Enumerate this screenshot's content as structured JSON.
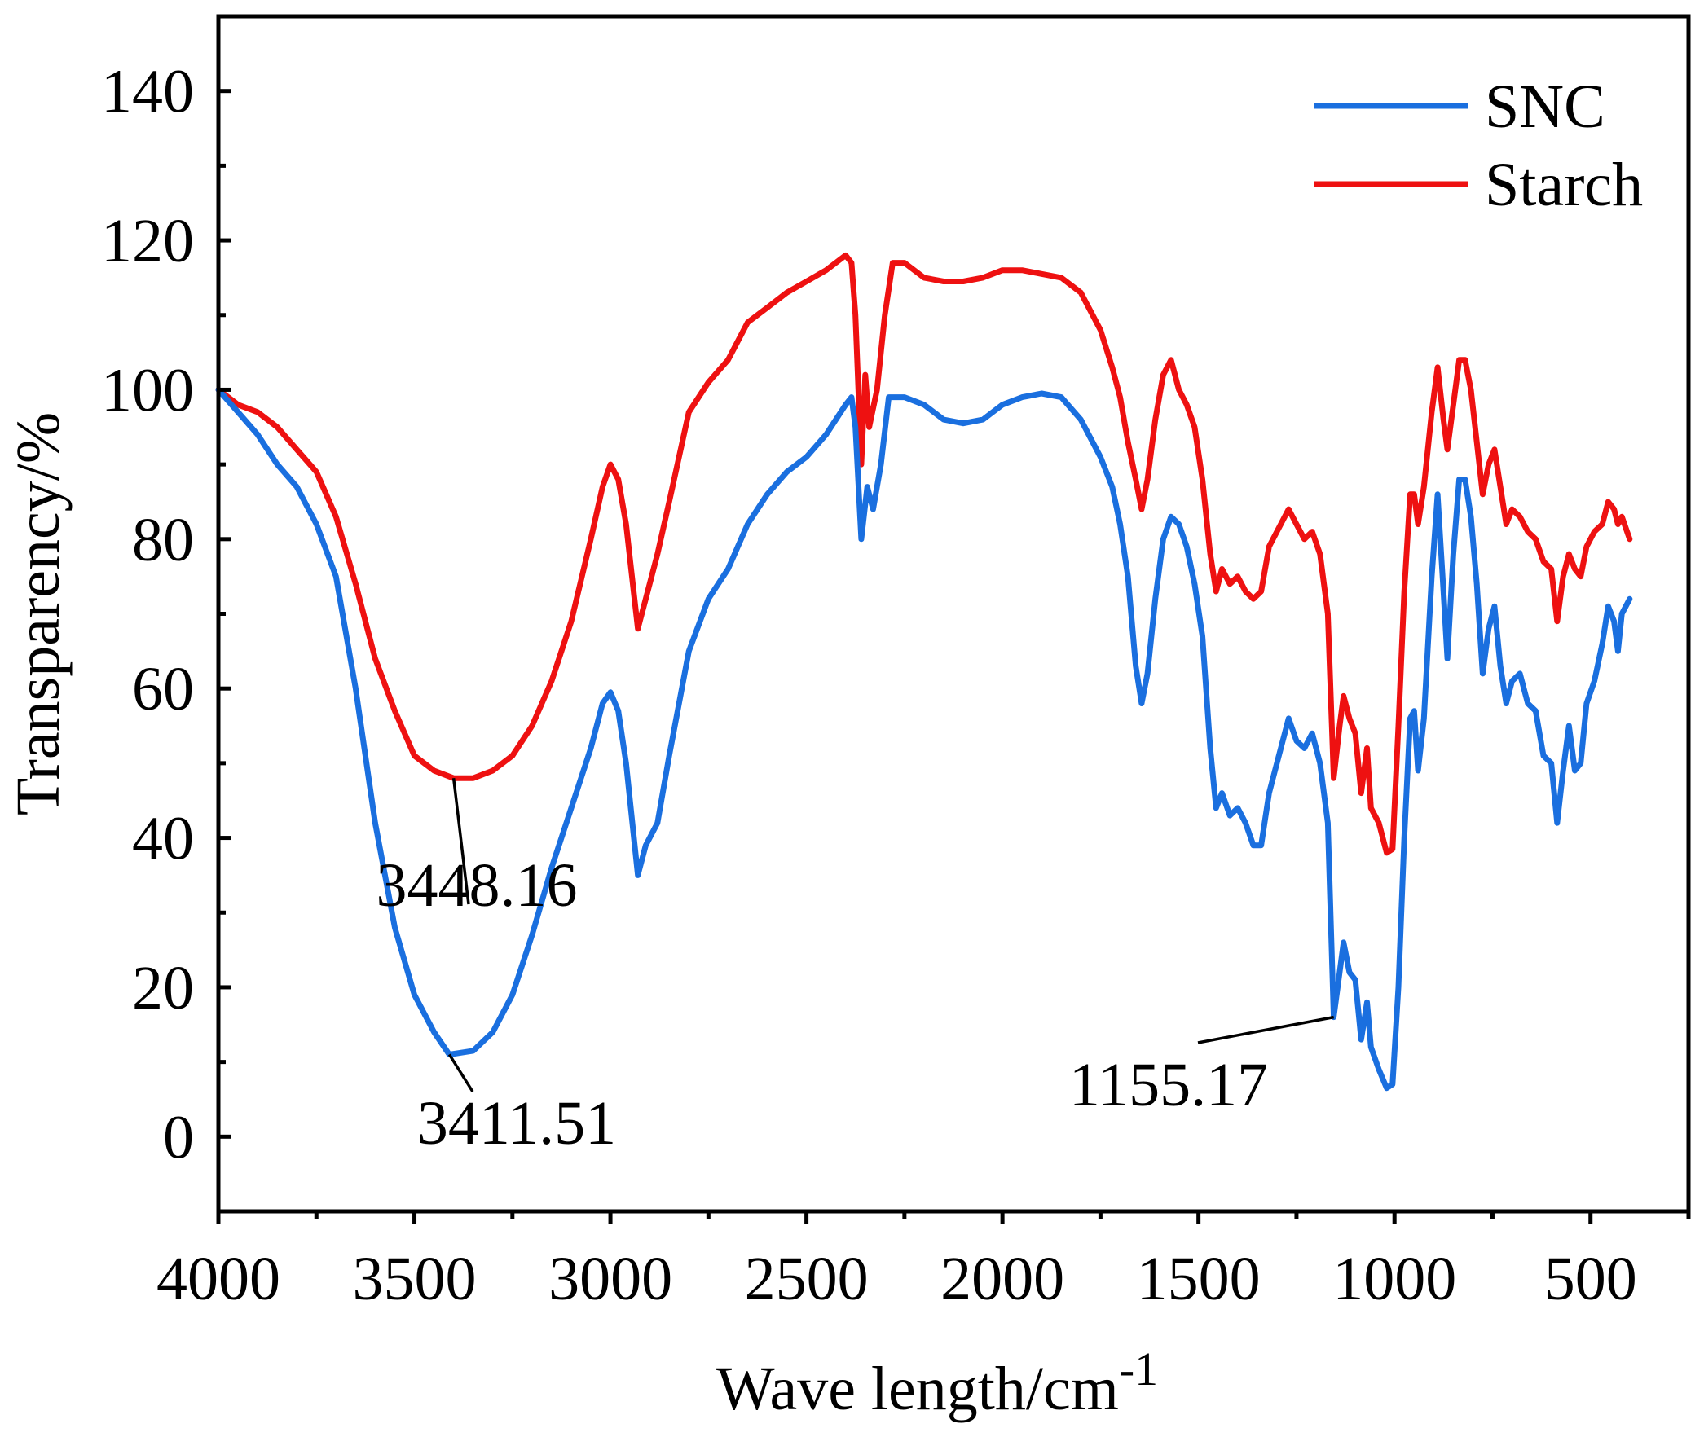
{
  "chart_data": {
    "type": "line",
    "title": "",
    "xlabel": "Wave length/cm",
    "xlabel_sup": "-1",
    "ylabel": "Transparency/%",
    "xlim": [
      4000,
      250
    ],
    "ylim": [
      -10,
      150
    ],
    "x_reversed": true,
    "grid": false,
    "legend_position": "top-right",
    "x_ticks": [
      4000,
      3500,
      3000,
      2500,
      2000,
      1500,
      1000,
      500
    ],
    "y_ticks": [
      0,
      20,
      40,
      60,
      80,
      100,
      120,
      140
    ],
    "series": [
      {
        "name": "SNC",
        "color": "#1a6fdf",
        "points": [
          [
            4000,
            100
          ],
          [
            3950,
            97
          ],
          [
            3900,
            94
          ],
          [
            3850,
            90
          ],
          [
            3800,
            87
          ],
          [
            3750,
            82
          ],
          [
            3700,
            75
          ],
          [
            3650,
            60
          ],
          [
            3600,
            42
          ],
          [
            3550,
            28
          ],
          [
            3500,
            19
          ],
          [
            3450,
            14
          ],
          [
            3411,
            11
          ],
          [
            3350,
            11.5
          ],
          [
            3300,
            14
          ],
          [
            3250,
            19
          ],
          [
            3200,
            27
          ],
          [
            3150,
            36
          ],
          [
            3100,
            44
          ],
          [
            3050,
            52
          ],
          [
            3020,
            58
          ],
          [
            3000,
            59.5
          ],
          [
            2980,
            57
          ],
          [
            2960,
            50
          ],
          [
            2930,
            35
          ],
          [
            2910,
            39
          ],
          [
            2880,
            42
          ],
          [
            2850,
            51
          ],
          [
            2800,
            65
          ],
          [
            2750,
            72
          ],
          [
            2700,
            76
          ],
          [
            2650,
            82
          ],
          [
            2600,
            86
          ],
          [
            2550,
            89
          ],
          [
            2500,
            91
          ],
          [
            2450,
            94
          ],
          [
            2400,
            98
          ],
          [
            2385,
            99
          ],
          [
            2375,
            95
          ],
          [
            2360,
            80
          ],
          [
            2345,
            87
          ],
          [
            2330,
            84
          ],
          [
            2310,
            90
          ],
          [
            2290,
            99
          ],
          [
            2250,
            99
          ],
          [
            2200,
            98
          ],
          [
            2150,
            96
          ],
          [
            2100,
            95.5
          ],
          [
            2050,
            96
          ],
          [
            2000,
            98
          ],
          [
            1950,
            99
          ],
          [
            1900,
            99.5
          ],
          [
            1850,
            99
          ],
          [
            1800,
            96
          ],
          [
            1750,
            91
          ],
          [
            1720,
            87
          ],
          [
            1700,
            82
          ],
          [
            1680,
            75
          ],
          [
            1660,
            63
          ],
          [
            1645,
            58
          ],
          [
            1630,
            62
          ],
          [
            1610,
            72
          ],
          [
            1590,
            80
          ],
          [
            1570,
            83
          ],
          [
            1550,
            82
          ],
          [
            1530,
            79
          ],
          [
            1510,
            74
          ],
          [
            1490,
            67
          ],
          [
            1470,
            52
          ],
          [
            1455,
            44
          ],
          [
            1440,
            46
          ],
          [
            1420,
            43
          ],
          [
            1400,
            44
          ],
          [
            1380,
            42
          ],
          [
            1360,
            39
          ],
          [
            1340,
            39
          ],
          [
            1320,
            46
          ],
          [
            1300,
            50
          ],
          [
            1280,
            54
          ],
          [
            1270,
            56
          ],
          [
            1250,
            53
          ],
          [
            1230,
            52
          ],
          [
            1210,
            54
          ],
          [
            1190,
            50
          ],
          [
            1170,
            42
          ],
          [
            1155,
            16
          ],
          [
            1140,
            22
          ],
          [
            1130,
            26
          ],
          [
            1115,
            22
          ],
          [
            1100,
            21
          ],
          [
            1085,
            13
          ],
          [
            1070,
            18
          ],
          [
            1060,
            12
          ],
          [
            1040,
            9
          ],
          [
            1020,
            6.5
          ],
          [
            1005,
            7
          ],
          [
            990,
            20
          ],
          [
            975,
            40
          ],
          [
            960,
            56
          ],
          [
            950,
            57
          ],
          [
            940,
            49
          ],
          [
            925,
            56
          ],
          [
            905,
            75
          ],
          [
            890,
            86
          ],
          [
            875,
            73
          ],
          [
            865,
            64
          ],
          [
            850,
            78
          ],
          [
            835,
            88
          ],
          [
            820,
            88
          ],
          [
            805,
            83
          ],
          [
            790,
            74
          ],
          [
            775,
            62
          ],
          [
            760,
            68
          ],
          [
            745,
            71
          ],
          [
            730,
            63
          ],
          [
            715,
            58
          ],
          [
            700,
            61
          ],
          [
            680,
            62
          ],
          [
            660,
            58
          ],
          [
            640,
            57
          ],
          [
            620,
            51
          ],
          [
            600,
            50
          ],
          [
            585,
            42
          ],
          [
            570,
            49
          ],
          [
            555,
            55
          ],
          [
            540,
            49
          ],
          [
            525,
            50
          ],
          [
            510,
            58
          ],
          [
            490,
            61
          ],
          [
            470,
            66
          ],
          [
            455,
            71
          ],
          [
            440,
            69
          ],
          [
            430,
            65
          ],
          [
            420,
            70
          ],
          [
            400,
            72
          ]
        ]
      },
      {
        "name": "Starch",
        "color": "#ee1111",
        "points": [
          [
            4000,
            100
          ],
          [
            3950,
            98
          ],
          [
            3900,
            97
          ],
          [
            3850,
            95
          ],
          [
            3800,
            92
          ],
          [
            3750,
            89
          ],
          [
            3700,
            83
          ],
          [
            3650,
            74
          ],
          [
            3600,
            64
          ],
          [
            3550,
            57
          ],
          [
            3500,
            51
          ],
          [
            3450,
            49
          ],
          [
            3400,
            48
          ],
          [
            3350,
            48
          ],
          [
            3300,
            49
          ],
          [
            3250,
            51
          ],
          [
            3200,
            55
          ],
          [
            3150,
            61
          ],
          [
            3100,
            69
          ],
          [
            3050,
            80
          ],
          [
            3020,
            87
          ],
          [
            3000,
            90
          ],
          [
            2980,
            88
          ],
          [
            2960,
            82
          ],
          [
            2930,
            68
          ],
          [
            2910,
            72
          ],
          [
            2880,
            78
          ],
          [
            2850,
            85
          ],
          [
            2800,
            97
          ],
          [
            2750,
            101
          ],
          [
            2700,
            104
          ],
          [
            2650,
            109
          ],
          [
            2600,
            111
          ],
          [
            2550,
            113
          ],
          [
            2500,
            114.5
          ],
          [
            2450,
            116
          ],
          [
            2400,
            118
          ],
          [
            2385,
            117
          ],
          [
            2375,
            110
          ],
          [
            2360,
            90
          ],
          [
            2350,
            102
          ],
          [
            2340,
            95
          ],
          [
            2320,
            100
          ],
          [
            2300,
            110
          ],
          [
            2280,
            117
          ],
          [
            2250,
            117
          ],
          [
            2200,
            115
          ],
          [
            2150,
            114.5
          ],
          [
            2100,
            114.5
          ],
          [
            2050,
            115
          ],
          [
            2000,
            116
          ],
          [
            1950,
            116
          ],
          [
            1900,
            115.5
          ],
          [
            1850,
            115
          ],
          [
            1800,
            113
          ],
          [
            1750,
            108
          ],
          [
            1720,
            103
          ],
          [
            1700,
            99
          ],
          [
            1680,
            93
          ],
          [
            1660,
            88
          ],
          [
            1645,
            84
          ],
          [
            1630,
            88
          ],
          [
            1610,
            96
          ],
          [
            1590,
            102
          ],
          [
            1570,
            104
          ],
          [
            1550,
            100
          ],
          [
            1530,
            98
          ],
          [
            1510,
            95
          ],
          [
            1490,
            88
          ],
          [
            1470,
            78
          ],
          [
            1455,
            73
          ],
          [
            1440,
            76
          ],
          [
            1420,
            74
          ],
          [
            1400,
            75
          ],
          [
            1380,
            73
          ],
          [
            1360,
            72
          ],
          [
            1340,
            73
          ],
          [
            1320,
            79
          ],
          [
            1300,
            81
          ],
          [
            1280,
            83
          ],
          [
            1270,
            84
          ],
          [
            1250,
            82
          ],
          [
            1230,
            80
          ],
          [
            1210,
            81
          ],
          [
            1190,
            78
          ],
          [
            1170,
            70
          ],
          [
            1155,
            48
          ],
          [
            1140,
            55
          ],
          [
            1130,
            59
          ],
          [
            1115,
            56
          ],
          [
            1100,
            54
          ],
          [
            1085,
            46
          ],
          [
            1070,
            52
          ],
          [
            1060,
            44
          ],
          [
            1040,
            42
          ],
          [
            1020,
            38
          ],
          [
            1005,
            38.5
          ],
          [
            990,
            55
          ],
          [
            975,
            73
          ],
          [
            960,
            86
          ],
          [
            950,
            86
          ],
          [
            940,
            82
          ],
          [
            925,
            87
          ],
          [
            905,
            97
          ],
          [
            890,
            103
          ],
          [
            875,
            96
          ],
          [
            865,
            92
          ],
          [
            850,
            98
          ],
          [
            835,
            104
          ],
          [
            820,
            104
          ],
          [
            805,
            100
          ],
          [
            790,
            93
          ],
          [
            775,
            86
          ],
          [
            760,
            90
          ],
          [
            745,
            92
          ],
          [
            730,
            87
          ],
          [
            715,
            82
          ],
          [
            700,
            84
          ],
          [
            680,
            83
          ],
          [
            660,
            81
          ],
          [
            640,
            80
          ],
          [
            620,
            77
          ],
          [
            600,
            76
          ],
          [
            585,
            69
          ],
          [
            570,
            75
          ],
          [
            555,
            78
          ],
          [
            540,
            76
          ],
          [
            525,
            75
          ],
          [
            510,
            79
          ],
          [
            490,
            81
          ],
          [
            470,
            82
          ],
          [
            455,
            85
          ],
          [
            440,
            84
          ],
          [
            430,
            82
          ],
          [
            420,
            83
          ],
          [
            400,
            80
          ]
        ]
      }
    ],
    "annotations": [
      {
        "label": "3448.16",
        "series": "Starch",
        "at": [
          3400,
          48
        ]
      },
      {
        "label": "3411.51",
        "series": "SNC",
        "at": [
          3411,
          11
        ]
      },
      {
        "label": "1155.17",
        "series": "SNC",
        "at": [
          1155,
          16
        ]
      }
    ]
  }
}
